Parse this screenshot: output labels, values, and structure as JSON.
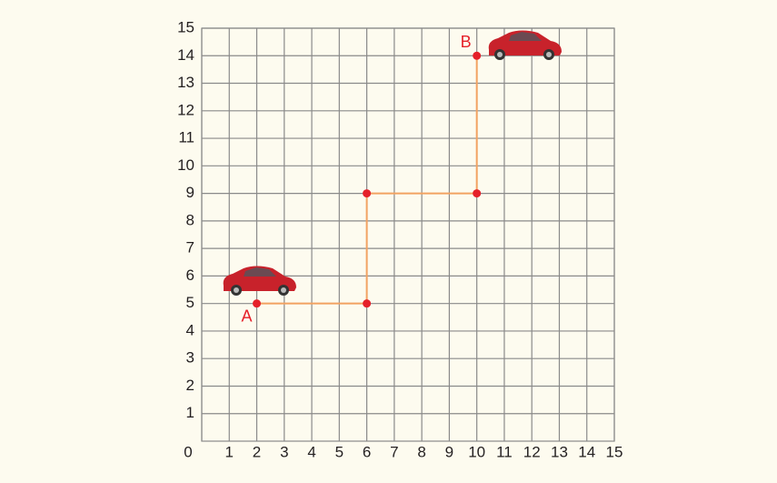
{
  "chart_data": {
    "type": "line",
    "x": [
      2,
      6,
      6,
      10,
      10
    ],
    "values": [
      5,
      5,
      9,
      9,
      14
    ],
    "annotations": [
      "A",
      "B"
    ],
    "color": "#f2a262",
    "marker_color": "#e5202a",
    "grid_color": "#8a8a8a",
    "xlim": [
      0,
      15
    ],
    "ylim": [
      0,
      15
    ],
    "xticks": [
      0,
      1,
      2,
      3,
      4,
      5,
      6,
      7,
      8,
      9,
      10,
      11,
      12,
      13,
      14,
      15
    ],
    "yticks": [
      1,
      2,
      3,
      4,
      5,
      6,
      7,
      8,
      9,
      10,
      11,
      12,
      13,
      14,
      15
    ],
    "grid": true
  }
}
